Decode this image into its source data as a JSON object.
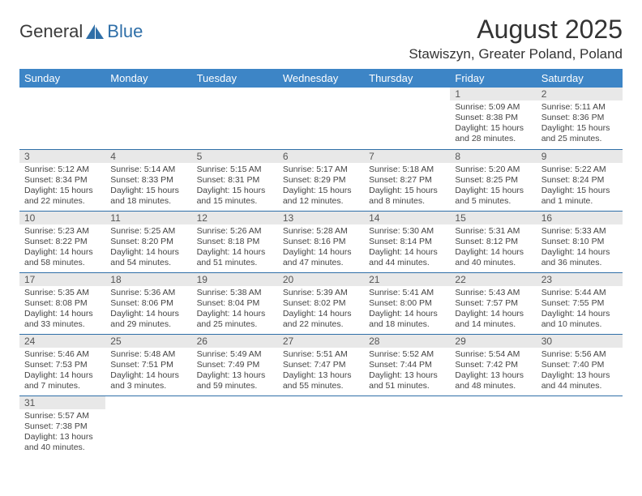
{
  "brand": {
    "part1": "General",
    "part2": "Blue"
  },
  "title": "August 2025",
  "location": "Stawiszyn, Greater Poland, Poland",
  "colors": {
    "header_bg": "#3d85c6",
    "header_text": "#ffffff",
    "border": "#2f6fa8",
    "daynum_bg": "#e8e8e8",
    "text": "#333333"
  },
  "weekdays": [
    "Sunday",
    "Monday",
    "Tuesday",
    "Wednesday",
    "Thursday",
    "Friday",
    "Saturday"
  ],
  "weeks": [
    [
      null,
      null,
      null,
      null,
      null,
      {
        "d": "1",
        "sr": "5:09 AM",
        "ss": "8:38 PM",
        "dl": "15 hours and 28 minutes."
      },
      {
        "d": "2",
        "sr": "5:11 AM",
        "ss": "8:36 PM",
        "dl": "15 hours and 25 minutes."
      }
    ],
    [
      {
        "d": "3",
        "sr": "5:12 AM",
        "ss": "8:34 PM",
        "dl": "15 hours and 22 minutes."
      },
      {
        "d": "4",
        "sr": "5:14 AM",
        "ss": "8:33 PM",
        "dl": "15 hours and 18 minutes."
      },
      {
        "d": "5",
        "sr": "5:15 AM",
        "ss": "8:31 PM",
        "dl": "15 hours and 15 minutes."
      },
      {
        "d": "6",
        "sr": "5:17 AM",
        "ss": "8:29 PM",
        "dl": "15 hours and 12 minutes."
      },
      {
        "d": "7",
        "sr": "5:18 AM",
        "ss": "8:27 PM",
        "dl": "15 hours and 8 minutes."
      },
      {
        "d": "8",
        "sr": "5:20 AM",
        "ss": "8:25 PM",
        "dl": "15 hours and 5 minutes."
      },
      {
        "d": "9",
        "sr": "5:22 AM",
        "ss": "8:24 PM",
        "dl": "15 hours and 1 minute."
      }
    ],
    [
      {
        "d": "10",
        "sr": "5:23 AM",
        "ss": "8:22 PM",
        "dl": "14 hours and 58 minutes."
      },
      {
        "d": "11",
        "sr": "5:25 AM",
        "ss": "8:20 PM",
        "dl": "14 hours and 54 minutes."
      },
      {
        "d": "12",
        "sr": "5:26 AM",
        "ss": "8:18 PM",
        "dl": "14 hours and 51 minutes."
      },
      {
        "d": "13",
        "sr": "5:28 AM",
        "ss": "8:16 PM",
        "dl": "14 hours and 47 minutes."
      },
      {
        "d": "14",
        "sr": "5:30 AM",
        "ss": "8:14 PM",
        "dl": "14 hours and 44 minutes."
      },
      {
        "d": "15",
        "sr": "5:31 AM",
        "ss": "8:12 PM",
        "dl": "14 hours and 40 minutes."
      },
      {
        "d": "16",
        "sr": "5:33 AM",
        "ss": "8:10 PM",
        "dl": "14 hours and 36 minutes."
      }
    ],
    [
      {
        "d": "17",
        "sr": "5:35 AM",
        "ss": "8:08 PM",
        "dl": "14 hours and 33 minutes."
      },
      {
        "d": "18",
        "sr": "5:36 AM",
        "ss": "8:06 PM",
        "dl": "14 hours and 29 minutes."
      },
      {
        "d": "19",
        "sr": "5:38 AM",
        "ss": "8:04 PM",
        "dl": "14 hours and 25 minutes."
      },
      {
        "d": "20",
        "sr": "5:39 AM",
        "ss": "8:02 PM",
        "dl": "14 hours and 22 minutes."
      },
      {
        "d": "21",
        "sr": "5:41 AM",
        "ss": "8:00 PM",
        "dl": "14 hours and 18 minutes."
      },
      {
        "d": "22",
        "sr": "5:43 AM",
        "ss": "7:57 PM",
        "dl": "14 hours and 14 minutes."
      },
      {
        "d": "23",
        "sr": "5:44 AM",
        "ss": "7:55 PM",
        "dl": "14 hours and 10 minutes."
      }
    ],
    [
      {
        "d": "24",
        "sr": "5:46 AM",
        "ss": "7:53 PM",
        "dl": "14 hours and 7 minutes."
      },
      {
        "d": "25",
        "sr": "5:48 AM",
        "ss": "7:51 PM",
        "dl": "14 hours and 3 minutes."
      },
      {
        "d": "26",
        "sr": "5:49 AM",
        "ss": "7:49 PM",
        "dl": "13 hours and 59 minutes."
      },
      {
        "d": "27",
        "sr": "5:51 AM",
        "ss": "7:47 PM",
        "dl": "13 hours and 55 minutes."
      },
      {
        "d": "28",
        "sr": "5:52 AM",
        "ss": "7:44 PM",
        "dl": "13 hours and 51 minutes."
      },
      {
        "d": "29",
        "sr": "5:54 AM",
        "ss": "7:42 PM",
        "dl": "13 hours and 48 minutes."
      },
      {
        "d": "30",
        "sr": "5:56 AM",
        "ss": "7:40 PM",
        "dl": "13 hours and 44 minutes."
      }
    ],
    [
      {
        "d": "31",
        "sr": "5:57 AM",
        "ss": "7:38 PM",
        "dl": "13 hours and 40 minutes."
      },
      null,
      null,
      null,
      null,
      null,
      null
    ]
  ],
  "labels": {
    "sunrise": "Sunrise:",
    "sunset": "Sunset:",
    "daylight": "Daylight:"
  }
}
